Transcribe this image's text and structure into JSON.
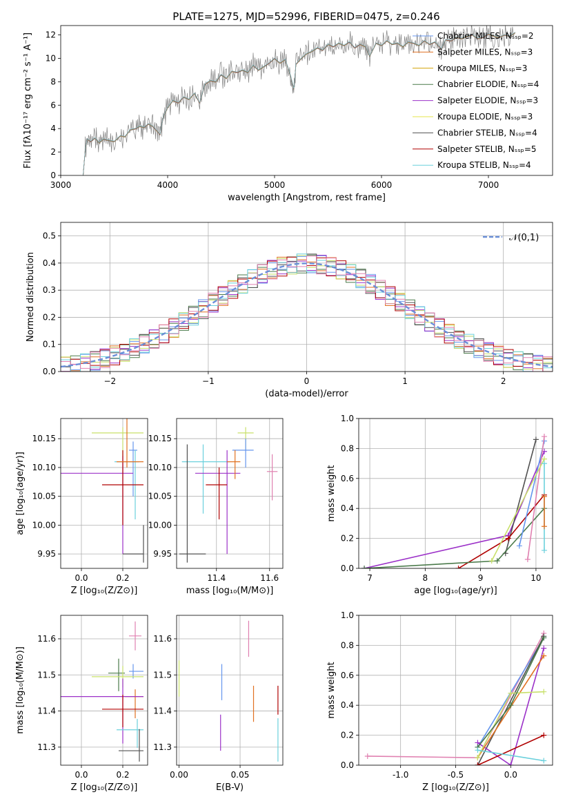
{
  "figure": {
    "title": "PLATE=1275, MJD=52996, FIBERID=0475, z=0.246",
    "panel_labels": {
      "spectrum": {
        "xlabel": "wavelength [Angstrom, rest frame]",
        "ylabel": "Flux [fλ10⁻¹⁷ erg cm⁻² s⁻¹ A⁻¹]"
      },
      "residuals": {
        "xlabel": "(data-model)/error",
        "ylabel": "Normed distribution"
      },
      "z_age": {
        "xlabel": "Z [log₁₀(Z/Z⊙)]",
        "ylabel": "age  [log₁₀(age/yr)]"
      },
      "mass_age": {
        "xlabel": "mass [log₁₀(M/M⊙)]"
      },
      "age_weight": {
        "xlabel": "age  [log₁₀(age/yr)]",
        "ylabel": "mass weight"
      },
      "z_mass": {
        "xlabel": "Z [log₁₀(Z/Z⊙)]",
        "ylabel": "mass [log₁₀(M/M⊙)]"
      },
      "ebv_mass": {
        "xlabel": "E(B-V)"
      },
      "z_weight": {
        "xlabel": "Z [log₁₀(Z/Z⊙)]",
        "ylabel": "mass weight"
      }
    }
  },
  "chart_data": [
    {
      "type": "line",
      "name": "spectrum",
      "xlim": [
        3000,
        7600
      ],
      "ylim": [
        0,
        12.8
      ],
      "xticks": [
        3000,
        4000,
        5000,
        6000,
        7000
      ],
      "yticks": [
        0,
        2,
        4,
        6,
        8,
        10,
        12
      ],
      "grid": false,
      "legend_position": "top-right",
      "data_series": {
        "name": "",
        "color": "#808080",
        "x": [
          3210,
          3230,
          3250,
          3280,
          3320,
          3360,
          3400,
          3450,
          3500,
          3560,
          3600,
          3650,
          3700,
          3740,
          3780,
          3820,
          3860,
          3900,
          3930,
          3960,
          4000,
          4050,
          4100,
          4150,
          4200,
          4250,
          4300,
          4350,
          4400,
          4450,
          4500,
          4550,
          4600,
          4650,
          4700,
          4750,
          4800,
          4850,
          4900,
          4950,
          5000,
          5050,
          5100,
          5150,
          5180,
          5200,
          5250,
          5300,
          5350,
          5400,
          5450,
          5500,
          5550,
          5600,
          5650,
          5700,
          5750,
          5800,
          5850,
          5890,
          5950,
          6000,
          6050,
          6100,
          6150,
          6200,
          6250,
          6300,
          6350,
          6400,
          6450,
          6500,
          6560,
          6600,
          6650,
          6700,
          6750,
          6800,
          6850,
          6900,
          6950,
          7000,
          7050,
          7100,
          7150,
          7200,
          7250
        ],
        "y": [
          0,
          2.3,
          3.1,
          2.9,
          3.2,
          2.8,
          3.1,
          3.0,
          2.9,
          3.4,
          3.3,
          3.9,
          4.0,
          4.2,
          4.1,
          4.4,
          4.2,
          3.8,
          3.5,
          5.0,
          5.8,
          6.4,
          6.2,
          6.7,
          6.5,
          7.0,
          6.2,
          7.8,
          8.1,
          8.0,
          8.6,
          8.3,
          8.9,
          8.8,
          9.0,
          8.8,
          9.4,
          9.0,
          9.3,
          9.6,
          10.0,
          9.6,
          9.9,
          8.5,
          7.4,
          9.5,
          10.0,
          10.4,
          10.6,
          10.9,
          10.7,
          11.2,
          11.0,
          11.3,
          11.1,
          11.4,
          10.9,
          11.2,
          11.0,
          10.2,
          11.3,
          11.1,
          11.5,
          11.2,
          11.3,
          11.0,
          11.4,
          11.3,
          11.1,
          11.5,
          11.2,
          11.4,
          10.8,
          11.6,
          11.5,
          11.8,
          11.7,
          11.9,
          12.0,
          11.7,
          11.8,
          12.1,
          11.9,
          11.8,
          12.0,
          11.9,
          12.2
        ]
      },
      "series": [
        {
          "name": "Chabrier MILES, Nₛₛₚ=2",
          "color": "#6495ed"
        },
        {
          "name": "Salpeter MILES, Nₛₛₚ=3",
          "color": "#e07020"
        },
        {
          "name": "Kroupa MILES, Nₛₛₚ=3",
          "color": "#d2a000"
        },
        {
          "name": "Chabrier ELODIE, Nₛₛₚ=4",
          "color": "#4a7a4a"
        },
        {
          "name": "Salpeter ELODIE, Nₛₛₚ=3",
          "color": "#9b30c8"
        },
        {
          "name": "Kroupa ELODIE, Nₛₛₚ=3",
          "color": "#e4e44a"
        },
        {
          "name": "Chabrier STELIB, Nₛₛₚ=4",
          "color": "#505050"
        },
        {
          "name": "Salpeter STELIB, Nₛₛₚ=5",
          "color": "#b00000"
        },
        {
          "name": "Kroupa STELIB, Nₛₛₚ=4",
          "color": "#6ad0dc"
        }
      ]
    },
    {
      "type": "line",
      "name": "residuals",
      "xlim": [
        -2.5,
        2.5
      ],
      "ylim": [
        0,
        0.55
      ],
      "xticks": [
        -2,
        -1,
        0,
        1,
        2
      ],
      "yticks": [
        0.0,
        0.1,
        0.2,
        0.3,
        0.4,
        0.5
      ],
      "grid": true,
      "legend_position": "top-right",
      "normal_curve": {
        "name": "𝒩(0,1)",
        "color": "#6a8fd8",
        "dashed": true
      },
      "bins": {
        "start": -2.5,
        "width": 0.1,
        "count": 50
      },
      "histogram_colors": [
        "#6495ed",
        "#e07020",
        "#4a7a4a",
        "#9b30c8",
        "#c8e06a",
        "#505050",
        "#b00000",
        "#6ad0dc",
        "#e080b0"
      ]
    },
    {
      "type": "scatter",
      "name": "z_age",
      "xlim": [
        -0.1,
        0.32
      ],
      "ylim": [
        9.925,
        10.185
      ],
      "xticks": [
        0.0,
        0.2
      ],
      "yticks": [
        9.95,
        10.0,
        10.05,
        10.1,
        10.15
      ],
      "grid": true,
      "points": [
        {
          "x": 0.2,
          "y": 10.16,
          "xerr": [
            0.15,
            0.1
          ],
          "yerr": [
            0.04,
            0.01
          ],
          "color": "#c8e06a"
        },
        {
          "x": 0.25,
          "y": 10.13,
          "xerr": [
            0.02,
            0.02
          ],
          "yerr": [
            0.08,
            0.015
          ],
          "color": "#6495ed"
        },
        {
          "x": 0.26,
          "y": 10.11,
          "xerr": [
            0.1,
            0.02
          ],
          "yerr": [
            0.1,
            0.02
          ],
          "color": "#6ad0dc"
        },
        {
          "x": 0.2,
          "y": 10.09,
          "xerr": [
            0.3,
            0.05
          ],
          "yerr": [
            0.14,
            0.03
          ],
          "color": "#9b30c8"
        },
        {
          "x": 0.2,
          "y": 10.07,
          "xerr": [
            0.1,
            0.1
          ],
          "yerr": [
            0.07,
            0.06
          ],
          "color": "#b00000"
        },
        {
          "x": 0.3,
          "y": 9.95,
          "xerr": [
            0.1,
            0.0
          ],
          "yerr": [
            0.015,
            0.05
          ],
          "color": "#505050"
        },
        {
          "x": 0.22,
          "y": 10.11,
          "xerr": [
            0.05,
            0.08
          ],
          "yerr": [
            0.01,
            0.1
          ],
          "color": "#e07020"
        }
      ]
    },
    {
      "type": "scatter",
      "name": "mass_age",
      "xlim": [
        11.25,
        11.65
      ],
      "ylim": [
        9.925,
        10.185
      ],
      "xticks": [
        11.4,
        11.6
      ],
      "yticks": [
        9.95,
        10.0,
        10.05,
        10.1,
        10.15
      ],
      "grid": true,
      "points": [
        {
          "x": 11.51,
          "y": 10.16,
          "xerr": [
            0.03,
            0.03
          ],
          "yerr": [
            0.03,
            0.01
          ],
          "color": "#c8e06a"
        },
        {
          "x": 11.51,
          "y": 10.13,
          "xerr": [
            0.05,
            0.03
          ],
          "yerr": [
            0.03,
            0.02
          ],
          "color": "#6495ed"
        },
        {
          "x": 11.61,
          "y": 10.093,
          "xerr": [
            0.02,
            0.02
          ],
          "yerr": [
            0.05,
            0.03
          ],
          "color": "#e080b0"
        },
        {
          "x": 11.35,
          "y": 10.11,
          "xerr": [
            0.08,
            0.1
          ],
          "yerr": [
            0.09,
            0.03
          ],
          "color": "#6ad0dc"
        },
        {
          "x": 11.44,
          "y": 10.09,
          "xerr": [
            0.12,
            0.05
          ],
          "yerr": [
            0.14,
            0.04
          ],
          "color": "#9b30c8"
        },
        {
          "x": 11.41,
          "y": 10.07,
          "xerr": [
            0.05,
            0.03
          ],
          "yerr": [
            0.06,
            0.03
          ],
          "color": "#b00000"
        },
        {
          "x": 11.29,
          "y": 9.95,
          "xerr": [
            0.03,
            0.07
          ],
          "yerr": [
            0.015,
            0.19
          ],
          "color": "#505050"
        },
        {
          "x": 11.47,
          "y": 10.11,
          "xerr": [
            0.03,
            0.02
          ],
          "yerr": [
            0.03,
            0.02
          ],
          "color": "#e07020"
        }
      ]
    },
    {
      "type": "line",
      "name": "age_weight",
      "xlim": [
        6.8,
        10.3
      ],
      "ylim": [
        0,
        1.0
      ],
      "xticks": [
        7,
        8,
        9,
        10
      ],
      "yticks": [
        0.0,
        0.2,
        0.4,
        0.6,
        0.8,
        1.0
      ],
      "grid": true,
      "series": [
        {
          "color": "#9b30c8",
          "x": [
            6.9,
            9.5,
            10.15
          ],
          "y": [
            0.0,
            0.22,
            0.78
          ]
        },
        {
          "color": "#505050",
          "x": [
            9.45,
            10.0
          ],
          "y": [
            0.1,
            0.86
          ]
        },
        {
          "color": "#b00000",
          "x": [
            8.6,
            9.5,
            10.15
          ],
          "y": [
            0.0,
            0.2,
            0.49
          ]
        },
        {
          "color": "#4a7a4a",
          "x": [
            6.9,
            9.3,
            10.15
          ],
          "y": [
            0.0,
            0.05,
            0.4
          ]
        },
        {
          "color": "#6495ed",
          "x": [
            9.7,
            10.15
          ],
          "y": [
            0.15,
            0.85
          ]
        },
        {
          "color": "#e080b0",
          "x": [
            9.85,
            10.15
          ],
          "y": [
            0.06,
            0.88
          ]
        },
        {
          "color": "#c8e06a",
          "x": [
            9.2,
            10.15
          ],
          "y": [
            0.05,
            0.73
          ]
        },
        {
          "color": "#6ad0dc",
          "x": [
            10.15,
            10.15
          ],
          "y": [
            0.12,
            0.7
          ]
        },
        {
          "color": "#e07020",
          "x": [
            10.15,
            10.15
          ],
          "y": [
            0.28,
            0.48
          ]
        }
      ]
    },
    {
      "type": "scatter",
      "name": "z_mass",
      "xlim": [
        -0.1,
        0.32
      ],
      "ylim": [
        11.25,
        11.665
      ],
      "xticks": [
        0.0,
        0.2
      ],
      "yticks": [
        11.3,
        11.4,
        11.5,
        11.6
      ],
      "grid": true,
      "points": [
        {
          "x": 0.26,
          "y": 11.608,
          "xerr": [
            0.03,
            0.03
          ],
          "yerr": [
            0.04,
            0.04
          ],
          "color": "#e080b0"
        },
        {
          "x": 0.25,
          "y": 11.51,
          "xerr": [
            0.02,
            0.05
          ],
          "yerr": [
            0.02,
            0.02
          ],
          "color": "#6495ed"
        },
        {
          "x": 0.18,
          "y": 11.505,
          "xerr": [
            0.05,
            0.03
          ],
          "yerr": [
            0.05,
            0.04
          ],
          "color": "#4a7a4a"
        },
        {
          "x": 0.2,
          "y": 11.495,
          "xerr": [
            0.15,
            0.1
          ],
          "yerr": [
            0.03,
            0.03
          ],
          "color": "#c8e06a"
        },
        {
          "x": 0.26,
          "y": 11.44,
          "xerr": [
            0.05,
            0.04
          ],
          "yerr": [
            0.06,
            0.02
          ],
          "color": "#e07020"
        },
        {
          "x": 0.2,
          "y": 11.44,
          "xerr": [
            0.3,
            0.1
          ],
          "yerr": [
            0.13,
            0.05
          ],
          "color": "#9b30c8"
        },
        {
          "x": 0.2,
          "y": 11.405,
          "xerr": [
            0.1,
            0.1
          ],
          "yerr": [
            0.05,
            0.04
          ],
          "color": "#b00000"
        },
        {
          "x": 0.27,
          "y": 11.348,
          "xerr": [
            0.1,
            0.03
          ],
          "yerr": [
            0.05,
            0.03
          ],
          "color": "#6ad0dc"
        },
        {
          "x": 0.28,
          "y": 11.29,
          "xerr": [
            0.1,
            0.02
          ],
          "yerr": [
            0.03,
            0.06
          ],
          "color": "#505050"
        }
      ]
    },
    {
      "type": "scatter",
      "name": "ebv_mass",
      "xlim": [
        -0.002,
        0.085
      ],
      "ylim": [
        11.25,
        11.665
      ],
      "xticks": [
        0.0,
        0.05
      ],
      "yticks": [
        11.3,
        11.4,
        11.5,
        11.6
      ],
      "grid": true,
      "points": [
        {
          "x": 0.0,
          "y": 11.49,
          "yerr": [
            0.05,
            0.05
          ],
          "color": "#c8e06a"
        },
        {
          "x": 0.057,
          "y": 11.6,
          "yerr": [
            0.05,
            0.05
          ],
          "color": "#e080b0"
        },
        {
          "x": 0.035,
          "y": 11.48,
          "yerr": [
            0.05,
            0.05
          ],
          "color": "#6495ed"
        },
        {
          "x": 0.034,
          "y": 11.34,
          "yerr": [
            0.05,
            0.05
          ],
          "color": "#9b30c8"
        },
        {
          "x": 0.061,
          "y": 11.42,
          "yerr": [
            0.05,
            0.05
          ],
          "color": "#e07020"
        },
        {
          "x": 0.081,
          "y": 11.43,
          "yerr": [
            0.04,
            0.04
          ],
          "color": "#b00000"
        },
        {
          "x": 0.081,
          "y": 11.32,
          "yerr": [
            0.06,
            0.06
          ],
          "color": "#6ad0dc"
        }
      ]
    },
    {
      "type": "line",
      "name": "z_weight",
      "xlim": [
        -1.38,
        0.38
      ],
      "ylim": [
        0,
        1.0
      ],
      "xticks": [
        -1.0,
        -0.5,
        0.0
      ],
      "yticks": [
        0.0,
        0.2,
        0.4,
        0.6,
        0.8,
        1.0
      ],
      "grid": true,
      "series": [
        {
          "color": "#e080b0",
          "x": [
            -1.3,
            -0.3,
            0.3
          ],
          "y": [
            0.06,
            0.05,
            0.88
          ]
        },
        {
          "color": "#6495ed",
          "x": [
            -0.3,
            0.3
          ],
          "y": [
            0.12,
            0.85
          ]
        },
        {
          "color": "#505050",
          "x": [
            -0.3,
            0.3
          ],
          "y": [
            0.0,
            0.86
          ]
        },
        {
          "color": "#9b30c8",
          "x": [
            -0.3,
            0.0,
            0.3
          ],
          "y": [
            0.15,
            0.0,
            0.78
          ]
        },
        {
          "color": "#e07020",
          "x": [
            -0.3,
            0.3
          ],
          "y": [
            0.05,
            0.73
          ]
        },
        {
          "color": "#c8e06a",
          "x": [
            -0.3,
            0.0,
            0.3
          ],
          "y": [
            0.05,
            0.48,
            0.49
          ]
        },
        {
          "color": "#4a7a4a",
          "x": [
            -0.3,
            0.0,
            0.3
          ],
          "y": [
            0.12,
            0.4,
            0.85
          ]
        },
        {
          "color": "#b00000",
          "x": [
            -0.3,
            0.3
          ],
          "y": [
            0.0,
            0.2
          ]
        },
        {
          "color": "#6ad0dc",
          "x": [
            -0.3,
            0.3
          ],
          "y": [
            0.1,
            0.03
          ]
        }
      ]
    }
  ]
}
